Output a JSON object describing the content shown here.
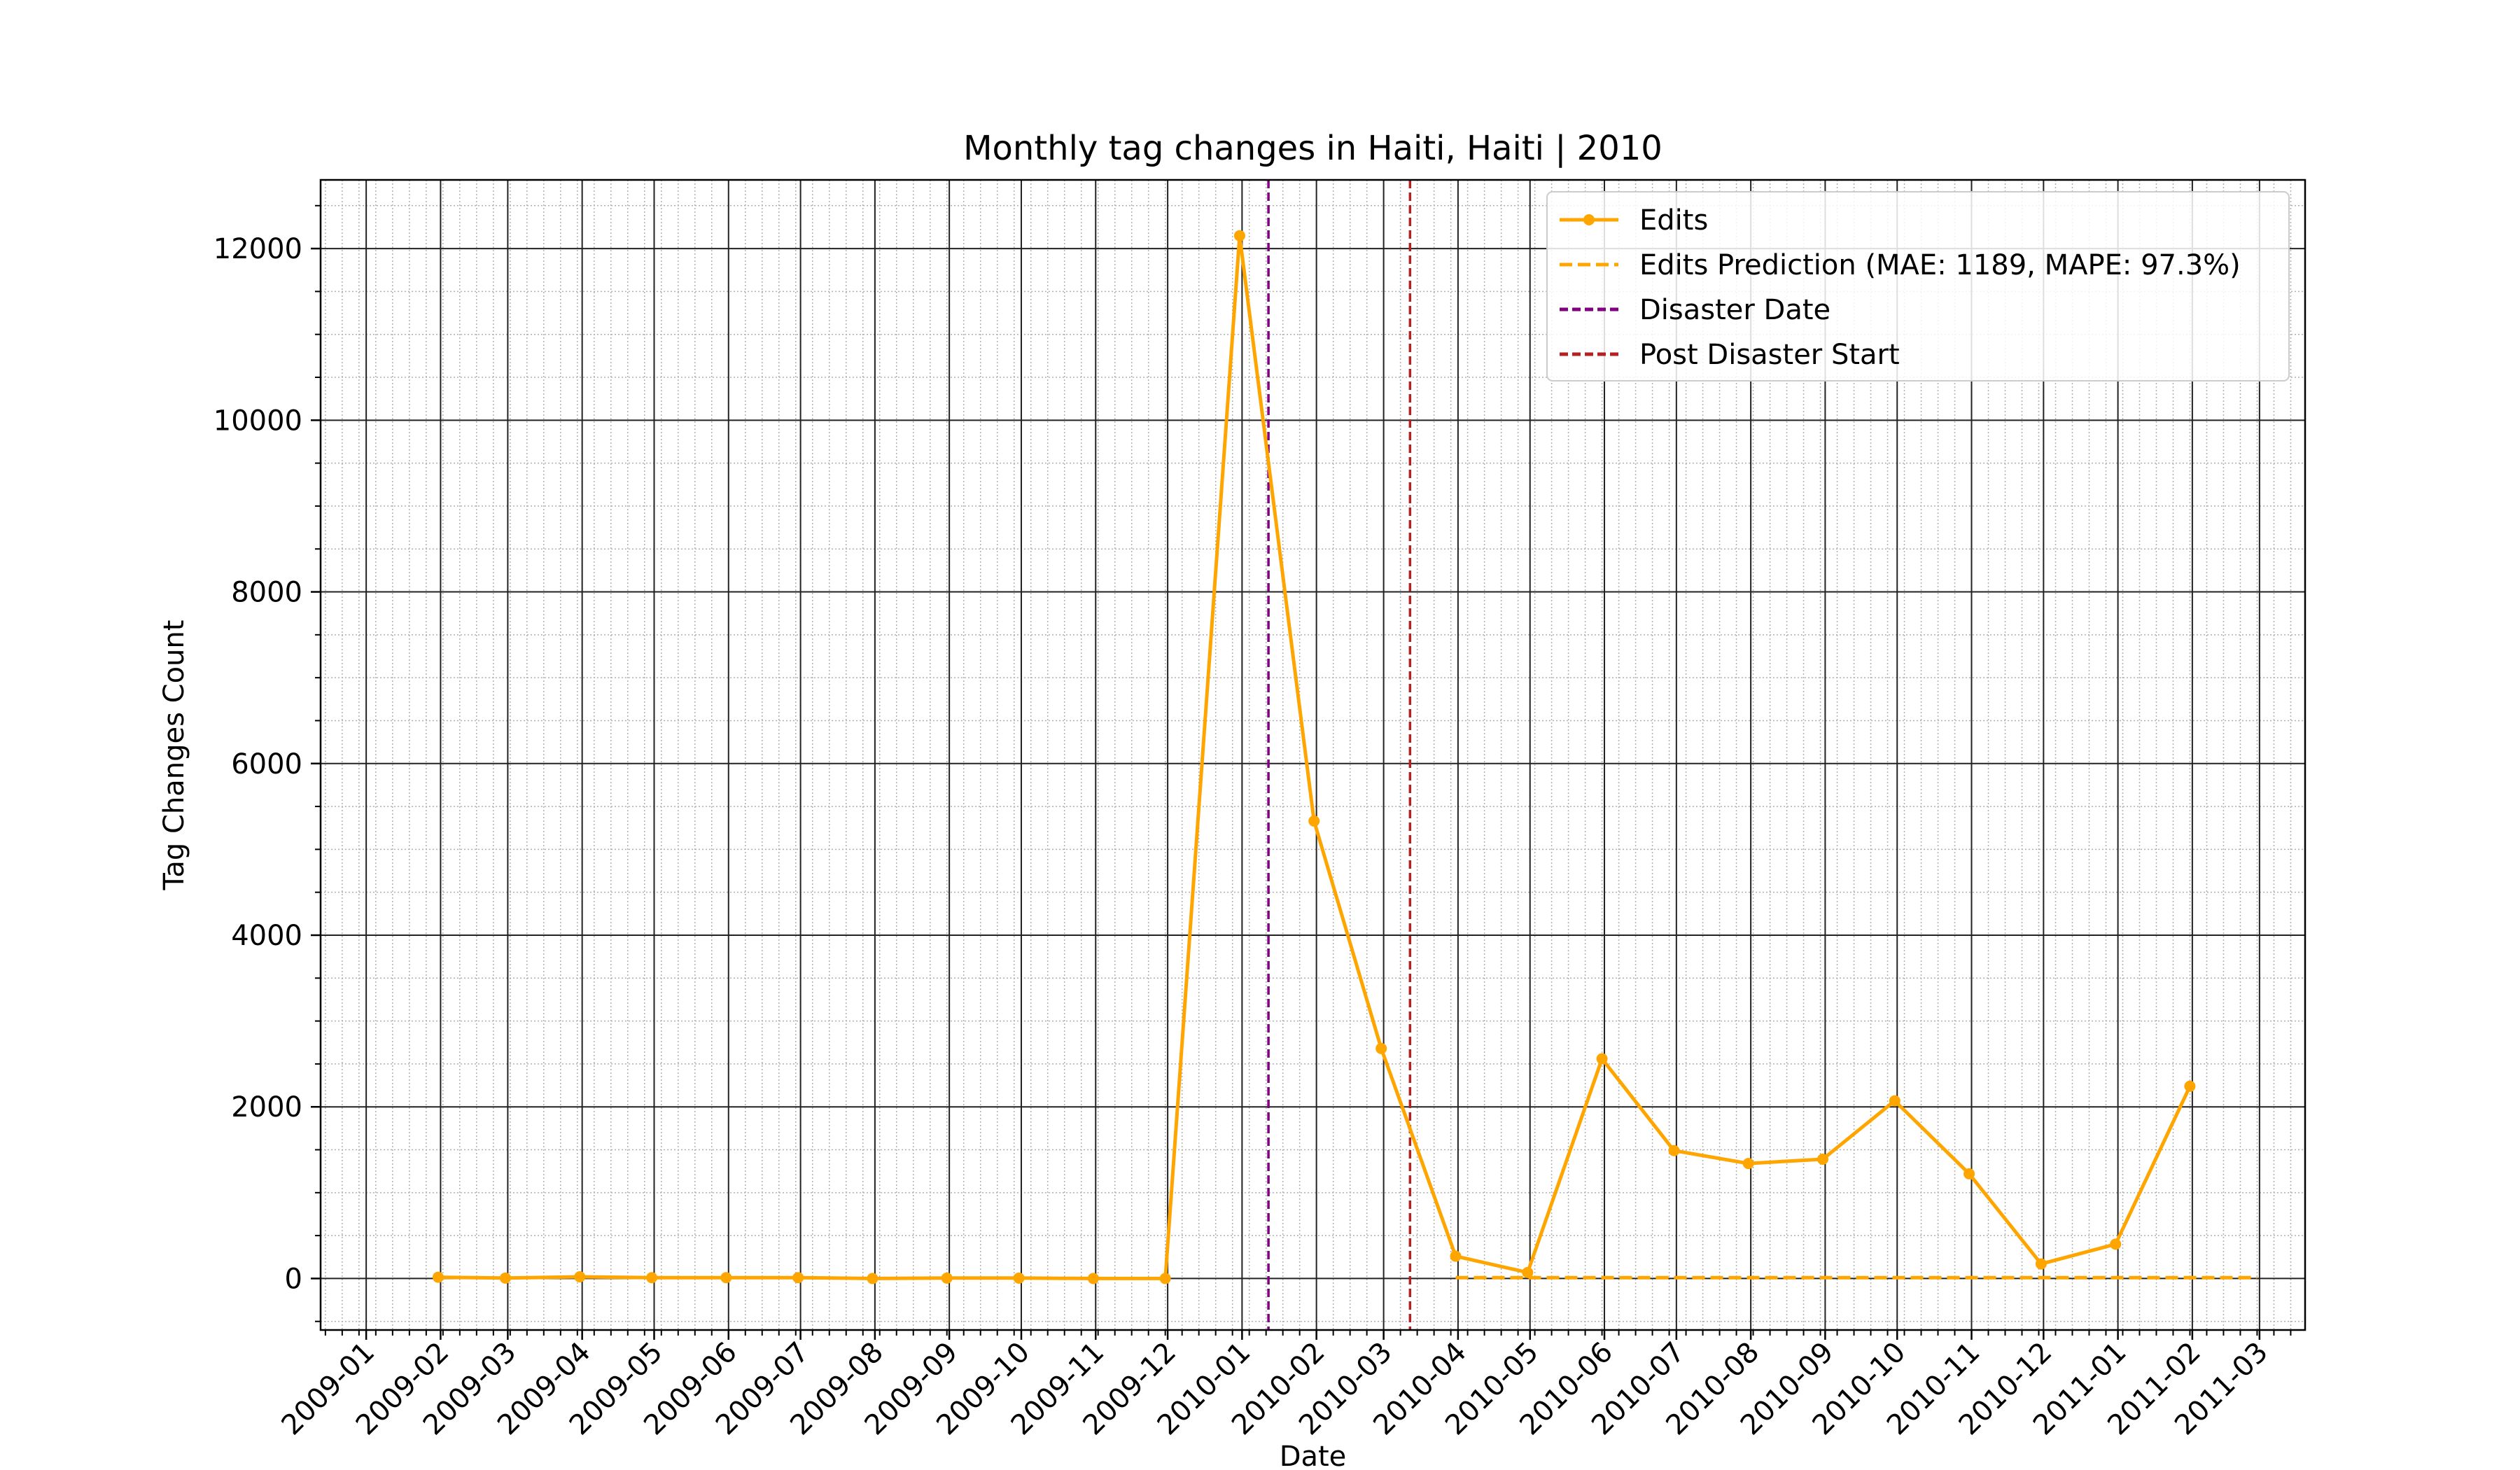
{
  "chart_data": {
    "type": "line",
    "title": "Monthly tag changes in Haiti, Haiti | 2010",
    "xlabel": "Date",
    "ylabel": "Tag Changes Count",
    "xlim": [
      "2008-12-13",
      "2011-03-20"
    ],
    "ylim": [
      -600,
      12800
    ],
    "y_ticks": [
      0,
      2000,
      4000,
      6000,
      8000,
      10000,
      12000
    ],
    "x_tick_labels": [
      "2009-01",
      "2009-02",
      "2009-03",
      "2009-04",
      "2009-05",
      "2009-06",
      "2009-07",
      "2009-08",
      "2009-09",
      "2009-10",
      "2009-11",
      "2009-12",
      "2010-01",
      "2010-02",
      "2010-03",
      "2010-04",
      "2010-05",
      "2010-06",
      "2010-07",
      "2010-08",
      "2010-09",
      "2010-10",
      "2010-11",
      "2010-12",
      "2011-01",
      "2011-02",
      "2011-03"
    ],
    "x_ticks": [
      "2009-01-01",
      "2009-02-01",
      "2009-03-01",
      "2009-04-01",
      "2009-05-01",
      "2009-06-01",
      "2009-07-01",
      "2009-08-01",
      "2009-09-01",
      "2009-10-01",
      "2009-11-01",
      "2009-12-01",
      "2010-01-01",
      "2010-02-01",
      "2010-03-01",
      "2010-04-01",
      "2010-05-01",
      "2010-06-01",
      "2010-07-01",
      "2010-08-01",
      "2010-09-01",
      "2010-10-01",
      "2010-11-01",
      "2010-12-01",
      "2011-01-01",
      "2011-02-01",
      "2011-03-01"
    ],
    "grid": {
      "major": true,
      "minor": true
    },
    "legend_position": "top-right",
    "series": [
      {
        "name": "Edits",
        "style": "solid-with-markers",
        "color": "#FFA500",
        "x": [
          "2009-01-31",
          "2009-02-28",
          "2009-03-31",
          "2009-04-30",
          "2009-05-31",
          "2009-06-30",
          "2009-07-31",
          "2009-08-31",
          "2009-09-30",
          "2009-10-31",
          "2009-11-30",
          "2009-12-31",
          "2010-01-31",
          "2010-02-28",
          "2010-03-31",
          "2010-04-30",
          "2010-05-31",
          "2010-06-30",
          "2010-07-31",
          "2010-08-31",
          "2010-09-30",
          "2010-10-31",
          "2010-11-30",
          "2010-12-31",
          "2011-01-31"
        ],
        "y": [
          15,
          5,
          20,
          10,
          10,
          10,
          0,
          5,
          5,
          0,
          0,
          12150,
          5330,
          2680,
          260,
          70,
          2560,
          1490,
          1340,
          1390,
          2070,
          1220,
          170,
          400,
          2240
        ]
      },
      {
        "name": "Edits Prediction (MAE: 1189, MAPE: 97.3%)",
        "style": "dashed",
        "color": "#FFA500",
        "x": [
          "2010-03-31",
          "2010-04-30",
          "2010-05-31",
          "2010-06-30",
          "2010-07-31",
          "2010-08-31",
          "2010-09-30",
          "2010-10-31",
          "2010-11-30",
          "2010-12-31",
          "2011-01-31",
          "2011-02-28"
        ],
        "y": [
          10,
          10,
          10,
          10,
          10,
          10,
          10,
          10,
          10,
          10,
          10,
          10
        ]
      }
    ],
    "vlines": [
      {
        "name": "Disaster Date",
        "x": "2010-01-12",
        "color": "#800080",
        "style": "dashed"
      },
      {
        "name": "Post Disaster Start",
        "x": "2010-03-12",
        "color": "#B22222",
        "style": "dashed"
      }
    ]
  }
}
